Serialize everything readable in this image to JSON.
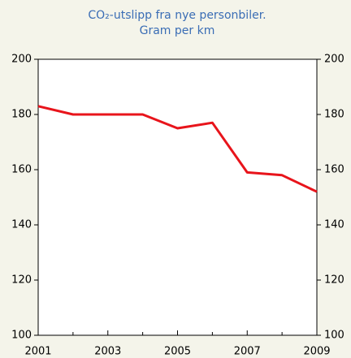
{
  "chart_data": {
    "type": "line",
    "title": "CO₂-utslipp fra nye personbiler.",
    "subtitle": "Gram per km",
    "x": [
      2001,
      2002,
      2003,
      2004,
      2005,
      2006,
      2007,
      2008,
      2009
    ],
    "series": [
      {
        "name": "CO₂-utslipp",
        "color": "#e8141b",
        "values": [
          183,
          180,
          180,
          180,
          175,
          177,
          159,
          158,
          152
        ]
      }
    ],
    "xlim": [
      2001,
      2009
    ],
    "xticks": [
      2001,
      2003,
      2005,
      2007,
      2009
    ],
    "ylim": [
      100,
      200
    ],
    "yticks": [
      100,
      120,
      140,
      160,
      180,
      200
    ]
  }
}
